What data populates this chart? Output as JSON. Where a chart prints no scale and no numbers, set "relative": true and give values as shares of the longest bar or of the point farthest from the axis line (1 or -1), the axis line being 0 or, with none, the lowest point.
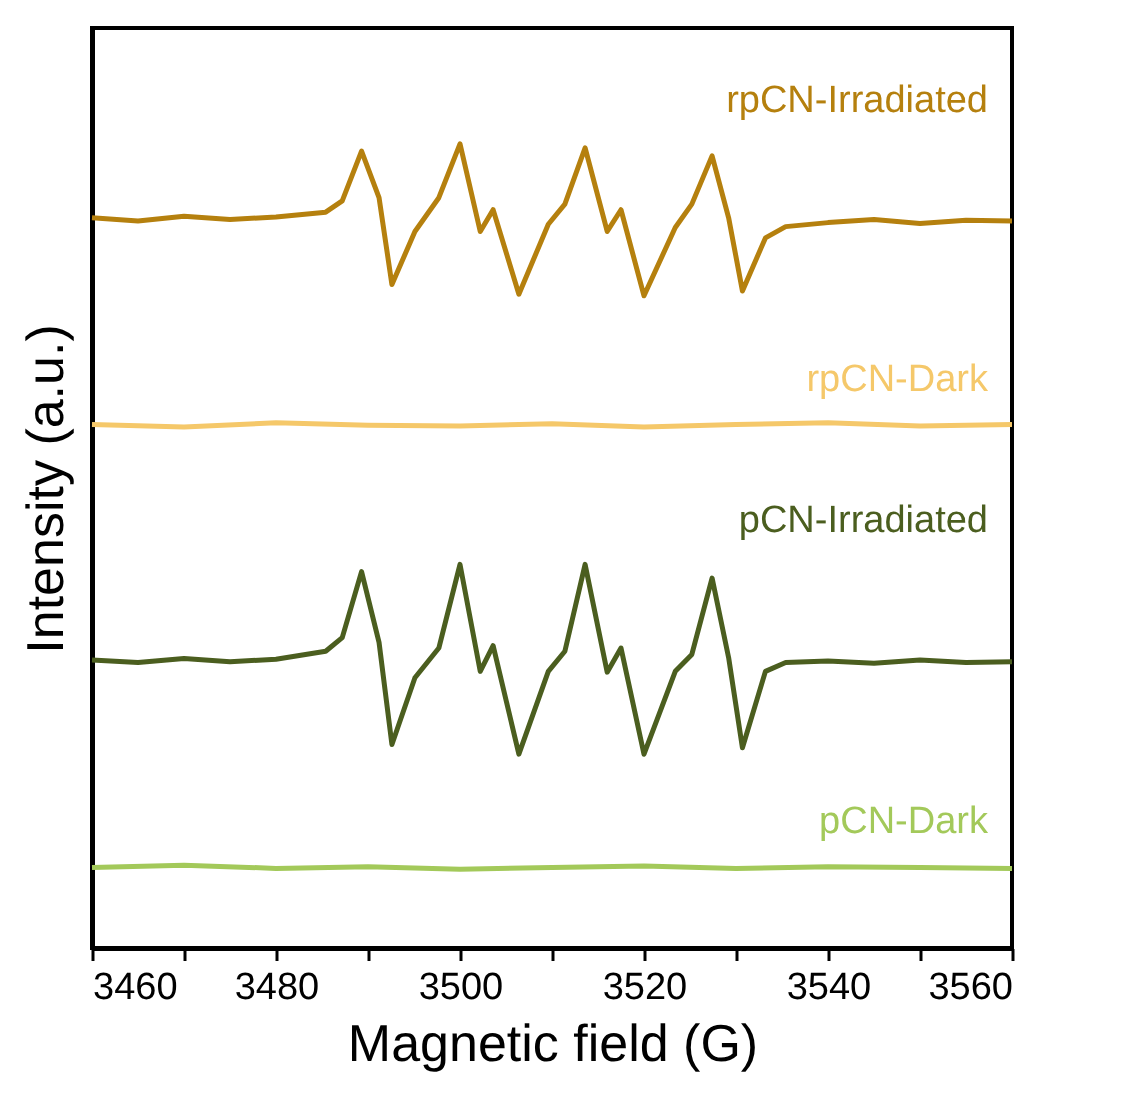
{
  "chart_data": {
    "type": "line",
    "relative": true,
    "xlabel": "Magnetic field (G)",
    "ylabel": "Intensity (a.u.)",
    "xlim": [
      3460,
      3560
    ],
    "xticks": [
      3460,
      {
        "value": 3470,
        "label": null
      },
      3480,
      {
        "value": 3490,
        "label": null
      },
      3500,
      {
        "value": 3510,
        "label": null
      },
      3520,
      {
        "value": 3530,
        "label": null
      },
      3540,
      {
        "value": 3550,
        "label": null
      },
      3560
    ],
    "series": [
      {
        "name": "rpCN-Irradiated",
        "color": "#b5800e",
        "x": [
          3460,
          3465,
          3470,
          3475,
          3480,
          3485.4,
          3487.2,
          3489.3,
          3491.2,
          3492.6,
          3495.1,
          3497.7,
          3500.0,
          3502.2,
          3503.6,
          3506.4,
          3509.6,
          3511.4,
          3513.6,
          3516.0,
          3517.5,
          3520.0,
          3523.4,
          3525.2,
          3527.4,
          3529.2,
          3530.7,
          3533.2,
          3535.4,
          3540,
          3545,
          3550,
          3555,
          3560
        ],
        "values": [
          0.908,
          0.904,
          0.91,
          0.906,
          0.909,
          0.915,
          0.929,
          0.991,
          0.933,
          0.825,
          0.891,
          0.933,
          1.0,
          0.891,
          0.918,
          0.813,
          0.9,
          0.925,
          0.995,
          0.891,
          0.918,
          0.811,
          0.896,
          0.925,
          0.985,
          0.908,
          0.817,
          0.883,
          0.897,
          0.902,
          0.906,
          0.901,
          0.905,
          0.904
        ]
      },
      {
        "name": "rpCN-Dark",
        "color": "#f5c86a",
        "x": [
          3460,
          3470,
          3480,
          3490,
          3500,
          3510,
          3520,
          3530,
          3540,
          3550,
          3560
        ],
        "values": [
          0.651,
          0.648,
          0.653,
          0.65,
          0.649,
          0.652,
          0.648,
          0.651,
          0.653,
          0.649,
          0.651
        ]
      },
      {
        "name": "pCN-Irradiated",
        "color": "#4b5e1f",
        "x": [
          3460,
          3465,
          3470,
          3475,
          3480,
          3485.4,
          3487.2,
          3489.3,
          3491.2,
          3492.6,
          3495.1,
          3497.7,
          3500.0,
          3502.2,
          3503.6,
          3506.4,
          3509.6,
          3511.4,
          3513.6,
          3516.0,
          3517.5,
          3520.0,
          3523.4,
          3525.2,
          3527.4,
          3529.2,
          3530.7,
          3533.2,
          3535.4,
          3540,
          3545,
          3550,
          3555,
          3560
        ],
        "values": [
          0.358,
          0.355,
          0.36,
          0.356,
          0.359,
          0.369,
          0.386,
          0.468,
          0.38,
          0.253,
          0.336,
          0.373,
          0.477,
          0.344,
          0.376,
          0.241,
          0.344,
          0.369,
          0.477,
          0.343,
          0.373,
          0.241,
          0.344,
          0.365,
          0.46,
          0.361,
          0.249,
          0.344,
          0.355,
          0.357,
          0.354,
          0.358,
          0.355,
          0.356
        ]
      },
      {
        "name": "pCN-Dark",
        "color": "#a3c95a",
        "x": [
          3460,
          3470,
          3480,
          3490,
          3500,
          3510,
          3520,
          3530,
          3540,
          3550,
          3560
        ],
        "values": [
          0.1,
          0.103,
          0.099,
          0.101,
          0.098,
          0.1,
          0.102,
          0.099,
          0.101,
          0.1,
          0.099
        ]
      }
    ]
  }
}
